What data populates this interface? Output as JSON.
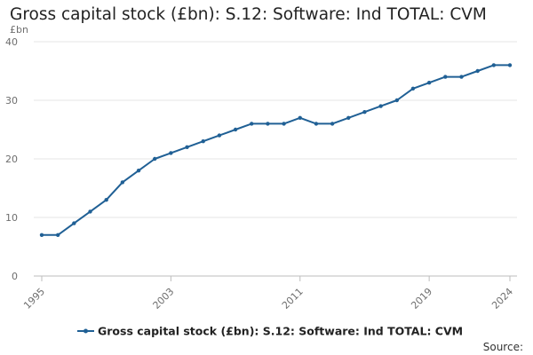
{
  "title": "Gross capital stock (£bn): S.12: Software: Ind TOTAL: CVM",
  "source_label": "Source:",
  "colors": {
    "series": "#206095",
    "grid": "#e6e6e6",
    "axis": "#bdbdbd"
  },
  "chart_data": {
    "type": "line",
    "title": "Gross capital stock (£bn): S.12: Software: Ind TOTAL: CVM",
    "ylabel": "£bn",
    "xlabel": "",
    "ylim": [
      0,
      40
    ],
    "xlim": [
      1995,
      2024
    ],
    "yticks": [
      0,
      10,
      20,
      30,
      40
    ],
    "xticks": [
      1995,
      2003,
      2011,
      2019,
      2024
    ],
    "grid": true,
    "legend_position": "bottom",
    "series": [
      {
        "name": "Gross capital stock (£bn): S.12: Software: Ind TOTAL: CVM",
        "x": [
          1995,
          1996,
          1997,
          1998,
          1999,
          2000,
          2001,
          2002,
          2003,
          2004,
          2005,
          2006,
          2007,
          2008,
          2009,
          2010,
          2011,
          2012,
          2013,
          2014,
          2015,
          2016,
          2017,
          2018,
          2019,
          2020,
          2021,
          2022,
          2023,
          2024
        ],
        "values": [
          7,
          7,
          9,
          11,
          13,
          16,
          18,
          20,
          21,
          22,
          23,
          24,
          25,
          26,
          26,
          26,
          27,
          26,
          26,
          27,
          28,
          29,
          30,
          32,
          33,
          34,
          34,
          35,
          36,
          36
        ]
      }
    ]
  }
}
